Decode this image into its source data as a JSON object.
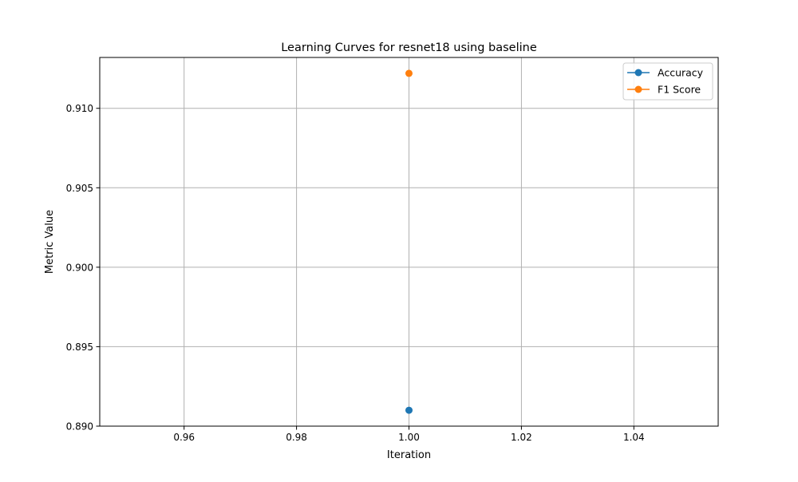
{
  "chart_data": {
    "type": "line",
    "title": "Learning Curves for resnet18 using baseline",
    "xlabel": "Iteration",
    "ylabel": "Metric Value",
    "xlim": [
      0.945,
      1.055
    ],
    "ylim": [
      0.89,
      0.9132
    ],
    "xticks": [
      0.96,
      0.98,
      1.0,
      1.02,
      1.04
    ],
    "xtick_labels": [
      "0.96",
      "0.98",
      "1.00",
      "1.02",
      "1.04"
    ],
    "yticks": [
      0.89,
      0.895,
      0.9,
      0.905,
      0.91
    ],
    "ytick_labels": [
      "0.890",
      "0.895",
      "0.900",
      "0.905",
      "0.910"
    ],
    "grid": true,
    "legend_position": "top-right",
    "series": [
      {
        "name": "Accuracy",
        "color": "#1f77b4",
        "x": [
          1.0
        ],
        "y": [
          0.891
        ]
      },
      {
        "name": "F1 Score",
        "color": "#ff7f0e",
        "x": [
          1.0
        ],
        "y": [
          0.9122
        ]
      }
    ]
  }
}
